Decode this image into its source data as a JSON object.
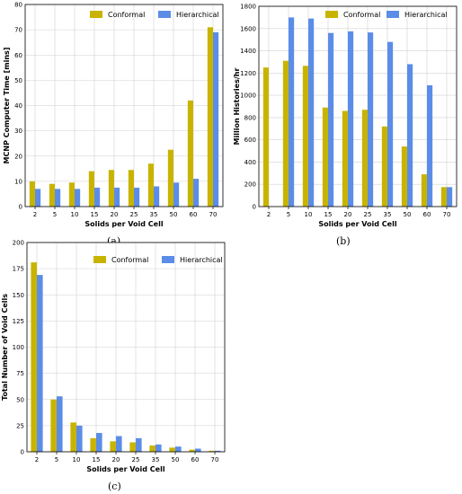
{
  "chart_data": [
    {
      "panel": "(a)",
      "type": "bar",
      "categories": [
        "2",
        "5",
        "10",
        "15",
        "20",
        "25",
        "35",
        "50",
        "60",
        "70"
      ],
      "series": [
        {
          "name": "Conformal",
          "color": "#c8b400",
          "values": [
            10,
            9,
            9.5,
            14,
            14.5,
            14.5,
            17,
            22.5,
            42,
            71
          ]
        },
        {
          "name": "Hierarchical",
          "color": "#5b8de8",
          "values": [
            7,
            7,
            7,
            7.5,
            7.5,
            7.5,
            8,
            9.5,
            11,
            69
          ]
        }
      ],
      "xlabel": "Solids per Void Cell",
      "ylabel": "MCNP Computer Time [mins]",
      "ylim": [
        0,
        80
      ],
      "yticks": [
        0,
        10,
        20,
        30,
        40,
        50,
        60,
        70,
        80
      ],
      "grid": true,
      "legend": "top-center"
    },
    {
      "panel": "(b)",
      "type": "bar",
      "categories": [
        "2",
        "5",
        "10",
        "15",
        "20",
        "25",
        "35",
        "50",
        "60",
        "70"
      ],
      "series": [
        {
          "name": "Conformal",
          "color": "#c8b400",
          "values": [
            1250,
            1310,
            1265,
            890,
            860,
            870,
            720,
            540,
            290,
            175
          ]
        },
        {
          "name": "Hierarchical",
          "color": "#5b8de8",
          "values": [
            0,
            1700,
            1690,
            1560,
            1575,
            1565,
            1480,
            1280,
            1090,
            175
          ]
        }
      ],
      "xlabel": "Solids per Void Cell",
      "ylabel": "Million Histories/hr",
      "ylim": [
        0,
        1800
      ],
      "yticks": [
        0,
        200,
        400,
        600,
        800,
        1000,
        1200,
        1400,
        1600,
        1800
      ],
      "grid": true,
      "legend": "top-right"
    },
    {
      "panel": "(c)",
      "type": "bar",
      "categories": [
        "2",
        "5",
        "10",
        "15",
        "20",
        "25",
        "35",
        "50",
        "60",
        "70"
      ],
      "series": [
        {
          "name": "Conformal",
          "color": "#c8b400",
          "values": [
            181,
            50,
            28,
            13,
            10,
            9,
            6,
            4,
            2,
            1
          ]
        },
        {
          "name": "Hierarchical",
          "color": "#5b8de8",
          "values": [
            169,
            53,
            25,
            18,
            15,
            13,
            7,
            5,
            3,
            1
          ]
        }
      ],
      "xlabel": "Solids per Void Cell",
      "ylabel": "Total Number of Void Cells",
      "ylim": [
        0,
        200
      ],
      "yticks": [
        0,
        25,
        50,
        75,
        100,
        125,
        150,
        175,
        200
      ],
      "grid": true,
      "legend": "top-center"
    }
  ]
}
